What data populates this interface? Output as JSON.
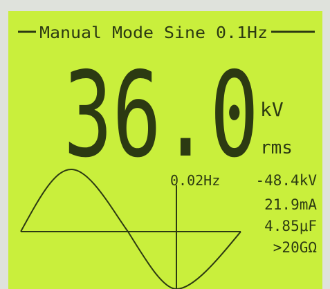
{
  "header": {
    "title": "Manual Mode Sine 0.1Hz"
  },
  "display": {
    "main_value": "36.0",
    "unit": "kV",
    "unit_mode": "rms",
    "frequency": "0.02Hz"
  },
  "readings": [
    "-48.4kV",
    "21.9mA",
    "4.85μF",
    ">20GΩ"
  ]
}
